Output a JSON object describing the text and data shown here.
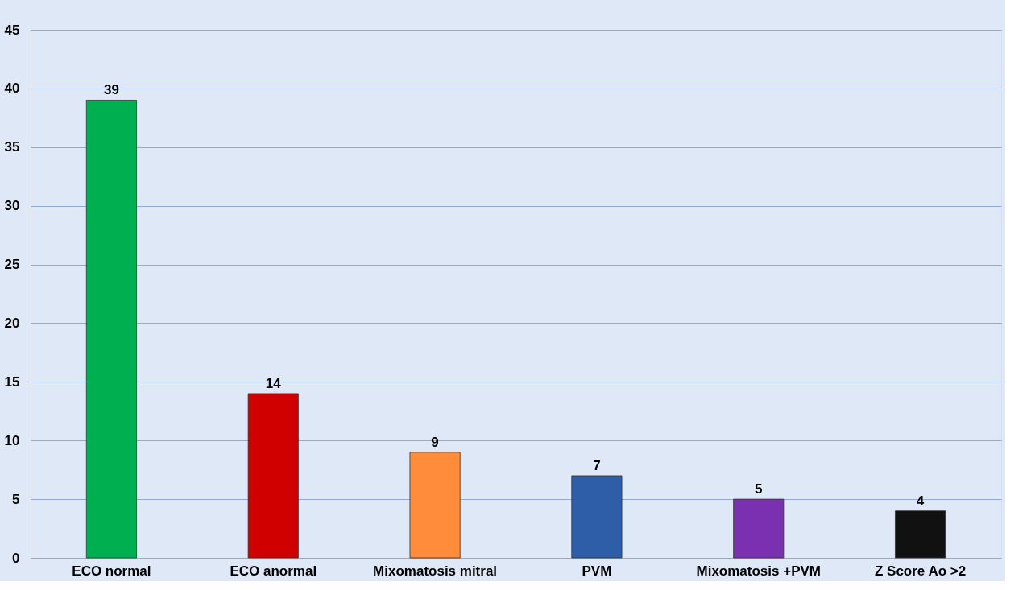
{
  "chart_data": {
    "type": "bar",
    "categories": [
      "ECO normal",
      "ECO anormal",
      "Mixomatosis mitral",
      "PVM",
      "Mixomatosis +PVM",
      "Z Score Ao >2"
    ],
    "values": [
      39,
      14,
      9,
      7,
      5,
      4
    ],
    "colors": [
      "#00b050",
      "#d00000",
      "#ff8c3a",
      "#2e5ea8",
      "#7a30b0",
      "#111111"
    ],
    "ylim": [
      0,
      45
    ],
    "yticks": [
      0,
      5,
      10,
      15,
      20,
      25,
      30,
      35,
      40,
      45
    ],
    "grid": "y",
    "data_labels": true
  }
}
